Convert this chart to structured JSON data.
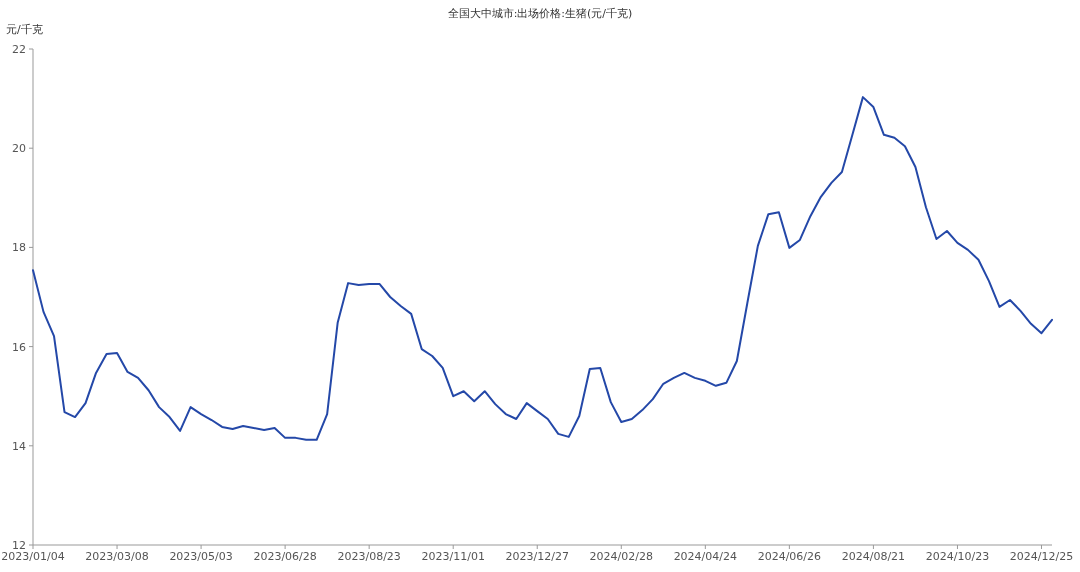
{
  "chart_data": {
    "type": "line",
    "title": "全国大中城市:出场价格:生猪(元/千克)",
    "ylabel": "元/千克",
    "categories": [
      "2023/01/04",
      null,
      null,
      null,
      null,
      null,
      null,
      null,
      "2023/03/08",
      null,
      null,
      null,
      null,
      null,
      null,
      null,
      "2023/05/03",
      null,
      null,
      null,
      null,
      null,
      null,
      null,
      "2023/06/28",
      null,
      null,
      null,
      null,
      null,
      null,
      null,
      "2023/08/23",
      null,
      null,
      null,
      null,
      null,
      null,
      null,
      "2023/11/01",
      null,
      null,
      null,
      null,
      null,
      null,
      null,
      "2023/12/27",
      null,
      null,
      null,
      null,
      null,
      null,
      null,
      "2024/02/28",
      null,
      null,
      null,
      null,
      null,
      null,
      null,
      "2024/04/24",
      null,
      null,
      null,
      null,
      null,
      null,
      null,
      "2024/06/26",
      null,
      null,
      null,
      null,
      null,
      null,
      null,
      "2024/08/21",
      null,
      null,
      null,
      null,
      null,
      null,
      null,
      "2024/10/23",
      null,
      null,
      null,
      null,
      null,
      null,
      null,
      "2024/12/25",
      null
    ],
    "values": [
      17.54,
      16.7,
      16.21,
      14.68,
      14.58,
      14.86,
      15.47,
      15.85,
      15.87,
      15.49,
      15.37,
      15.12,
      14.78,
      14.58,
      14.3,
      14.78,
      14.64,
      14.52,
      14.38,
      14.34,
      14.4,
      14.36,
      14.32,
      14.36,
      14.16,
      14.16,
      14.12,
      14.12,
      14.64,
      16.48,
      17.28,
      17.24,
      17.26,
      17.26,
      17.0,
      16.82,
      16.66,
      15.95,
      15.81,
      15.57,
      15.0,
      15.1,
      14.9,
      15.1,
      14.84,
      14.64,
      14.54,
      14.86,
      14.7,
      14.54,
      14.24,
      14.18,
      14.6,
      15.55,
      15.57,
      14.88,
      14.48,
      14.54,
      14.72,
      14.94,
      15.25,
      15.37,
      15.47,
      15.37,
      15.31,
      15.21,
      15.27,
      15.71,
      16.88,
      18.03,
      18.67,
      18.71,
      17.99,
      18.15,
      18.63,
      19.02,
      19.3,
      19.52,
      20.27,
      21.03,
      20.83,
      20.27,
      20.21,
      20.04,
      19.62,
      18.81,
      18.17,
      18.33,
      18.09,
      17.95,
      17.75,
      17.32,
      16.8,
      16.94,
      16.72,
      16.46,
      16.27,
      16.54
    ],
    "color": "#2448a8",
    "ylim": [
      12,
      22
    ],
    "yticks": [
      12,
      14,
      16,
      18,
      20,
      22
    ]
  }
}
